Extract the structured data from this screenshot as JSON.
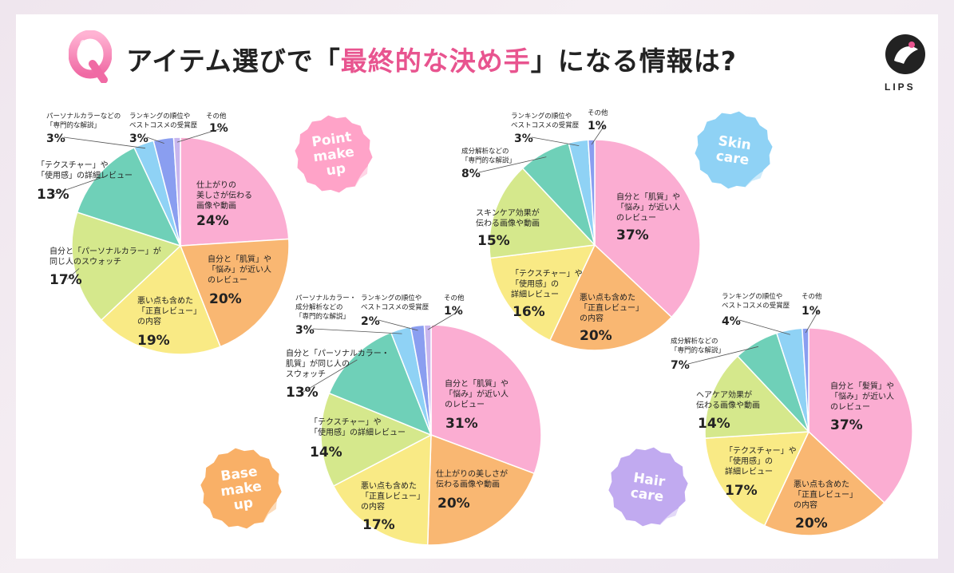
{
  "title": {
    "q": "Q",
    "before": "アイテム選びで「",
    "highlight": "最終的な決め手",
    "after": "」になる情報は?"
  },
  "logo": {
    "text": "LIPS",
    "color": "#e8548f"
  },
  "colors": {
    "pink": "#fbadd2",
    "orange": "#f9b772",
    "yellow": "#f9ea85",
    "green": "#d5e88c",
    "teal": "#6fd0b8",
    "blue": "#8fd2f5",
    "purple": "#8a9ef0",
    "lavender": "#c8b6ee",
    "badge_point": "#ffa3c8",
    "badge_skin": "#8fd2f5",
    "badge_base": "#f9b067",
    "badge_hair": "#c1aaf0",
    "highlight": "#e8548f"
  },
  "chart_data": [
    {
      "type": "pie",
      "category": [
        "Point",
        "make",
        "up"
      ],
      "slices": [
        {
          "label": [
            "仕上がりの",
            "美しさが伝わる",
            "画像や動画"
          ],
          "value": 24,
          "color": "pink"
        },
        {
          "label": [
            "自分と「肌質」や",
            "「悩み」が近い人",
            "のレビュー"
          ],
          "value": 20,
          "color": "orange"
        },
        {
          "label": [
            "悪い点も含めた",
            "「正直レビュー」",
            "の内容"
          ],
          "value": 19,
          "color": "yellow"
        },
        {
          "label": [
            "自分と「パーソナルカラー」が",
            "同じ人のスウォッチ"
          ],
          "value": 17,
          "color": "green"
        },
        {
          "label": [
            "「テクスチャー」や",
            "「使用感」の詳細レビュー"
          ],
          "value": 13,
          "color": "teal"
        },
        {
          "label": [
            "パーソナルカラーなどの",
            "「専門的な解説」"
          ],
          "value": 3,
          "color": "blue"
        },
        {
          "label": [
            "ランキングの順位や",
            "ベストコスメの受賞歴"
          ],
          "value": 3,
          "color": "purple"
        },
        {
          "label": [
            "その他"
          ],
          "value": 1,
          "color": "lavender"
        }
      ]
    },
    {
      "type": "pie",
      "category": [
        "Skin",
        "care"
      ],
      "slices": [
        {
          "label": [
            "自分と「肌質」や",
            "「悩み」が近い人",
            "のレビュー"
          ],
          "value": 37,
          "color": "pink"
        },
        {
          "label": [
            "悪い点も含めた",
            "「正直レビュー」",
            "の内容"
          ],
          "value": 20,
          "color": "orange"
        },
        {
          "label": [
            "「テクスチャー」や",
            "「使用感」の",
            "詳細レビュー"
          ],
          "value": 16,
          "color": "yellow"
        },
        {
          "label": [
            "スキンケア効果が",
            "伝わる画像や動画"
          ],
          "value": 15,
          "color": "green"
        },
        {
          "label": [
            "成分解析などの",
            "「専門的な解説」"
          ],
          "value": 8,
          "color": "teal"
        },
        {
          "label": [
            "ランキングの順位や",
            "ベストコスメの受賞歴"
          ],
          "value": 3,
          "color": "blue"
        },
        {
          "label": [
            "その他"
          ],
          "value": 1,
          "color": "purple"
        }
      ]
    },
    {
      "type": "pie",
      "category": [
        "Base",
        "make",
        "up"
      ],
      "slices": [
        {
          "label": [
            "自分と「肌質」や",
            "「悩み」が近い人",
            "のレビュー"
          ],
          "value": 31,
          "color": "pink"
        },
        {
          "label": [
            "仕上がりの美しさが",
            "伝わる画像や動画"
          ],
          "value": 20,
          "color": "orange"
        },
        {
          "label": [
            "悪い点も含めた",
            "「正直レビュー」",
            "の内容"
          ],
          "value": 17,
          "color": "yellow"
        },
        {
          "label": [
            "「テクスチャー」や",
            "「使用感」の詳細レビュー"
          ],
          "value": 14,
          "color": "green"
        },
        {
          "label": [
            "自分と「パーソナルカラー・",
            "肌質」が同じ人の",
            "スウォッチ"
          ],
          "value": 13,
          "color": "teal"
        },
        {
          "label": [
            "パーソナルカラー・",
            "成分解析などの",
            "「専門的な解説」"
          ],
          "value": 3,
          "color": "blue"
        },
        {
          "label": [
            "ランキングの順位や",
            "ベストコスメの受賞歴"
          ],
          "value": 2,
          "color": "purple"
        },
        {
          "label": [
            "その他"
          ],
          "value": 1,
          "color": "lavender"
        }
      ]
    },
    {
      "type": "pie",
      "category": [
        "Hair",
        "care"
      ],
      "slices": [
        {
          "label": [
            "自分と「髪質」や",
            "「悩み」が近い人",
            "のレビュー"
          ],
          "value": 37,
          "color": "pink"
        },
        {
          "label": [
            "悪い点も含めた",
            "「正直レビュー」",
            "の内容"
          ],
          "value": 20,
          "color": "orange"
        },
        {
          "label": [
            "「テクスチャー」や",
            "「使用感」の",
            "詳細レビュー"
          ],
          "value": 17,
          "color": "yellow"
        },
        {
          "label": [
            "ヘアケア効果が",
            "伝わる画像や動画"
          ],
          "value": 14,
          "color": "green"
        },
        {
          "label": [
            "成分解析などの",
            "「専門的な解説」"
          ],
          "value": 7,
          "color": "teal"
        },
        {
          "label": [
            "ランキングの順位や",
            "ベストコスメの受賞歴"
          ],
          "value": 4,
          "color": "blue"
        },
        {
          "label": [
            "その他"
          ],
          "value": 1,
          "color": "purple"
        }
      ]
    }
  ]
}
